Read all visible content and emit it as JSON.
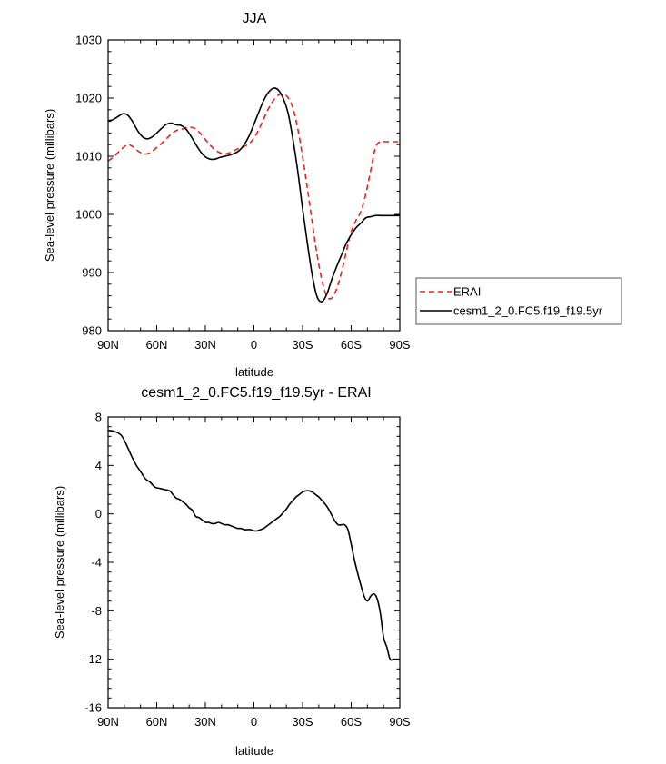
{
  "chart_data": [
    {
      "type": "line",
      "title": "JJA",
      "xlabel": "latitude",
      "ylabel": "Sea-level pressure (millibars)",
      "xlim": [
        90,
        -90
      ],
      "ylim": [
        980,
        1030
      ],
      "x_ticks": [
        {
          "value": 90,
          "label": "90N"
        },
        {
          "value": 60,
          "label": "60N"
        },
        {
          "value": 30,
          "label": "30N"
        },
        {
          "value": 0,
          "label": "0"
        },
        {
          "value": -30,
          "label": "30S"
        },
        {
          "value": -60,
          "label": "60S"
        },
        {
          "value": -90,
          "label": "90S"
        }
      ],
      "y_ticks": [
        {
          "value": 980,
          "label": "980"
        },
        {
          "value": 990,
          "label": "990"
        },
        {
          "value": 1000,
          "label": "1000"
        },
        {
          "value": 1010,
          "label": "1010"
        },
        {
          "value": 1020,
          "label": "1020"
        },
        {
          "value": 1030,
          "label": "1030"
        }
      ],
      "grid": false,
      "legend_position": "right-outside",
      "series": [
        {
          "name": "ERAI",
          "color": "#e8231d",
          "dash": "dashed",
          "x": [
            90,
            87,
            84,
            81,
            78,
            75,
            72,
            69,
            66,
            63,
            60,
            57,
            54,
            51,
            48,
            45,
            42,
            39,
            36,
            33,
            30,
            27,
            24,
            21,
            18,
            15,
            12,
            9,
            6,
            3,
            0,
            -3,
            -6,
            -9,
            -12,
            -15,
            -18,
            -21,
            -24,
            -27,
            -30,
            -33,
            -36,
            -39,
            -42,
            -45,
            -48,
            -51,
            -54,
            -57,
            -60,
            -63,
            -66,
            -69,
            -72,
            -75,
            -78,
            -81,
            -84,
            -87,
            -90
          ],
          "y": [
            1009.2,
            1009.8,
            1010.6,
            1011.4,
            1012.0,
            1011.7,
            1011.0,
            1010.5,
            1010.4,
            1010.8,
            1011.5,
            1012.2,
            1013.0,
            1013.8,
            1014.4,
            1014.6,
            1014.9,
            1015.0,
            1014.7,
            1013.9,
            1012.9,
            1011.9,
            1011.1,
            1010.6,
            1010.4,
            1010.6,
            1011.0,
            1011.4,
            1011.7,
            1012.2,
            1013.1,
            1014.6,
            1016.4,
            1018.2,
            1019.6,
            1020.5,
            1020.7,
            1020.1,
            1018.3,
            1014.8,
            1010.0,
            1004.4,
            998.5,
            993.0,
            988.6,
            985.9,
            985.6,
            987.2,
            990.0,
            993.6,
            997.0,
            999.0,
            1000.5,
            1003.5,
            1007.5,
            1011.5,
            1012.5,
            1012.5,
            1012.5,
            1012.5,
            1012.5
          ]
        },
        {
          "name": "cesm1_2_0.FC5.f19_f19.5yr",
          "color": "#000000",
          "dash": "solid",
          "x": [
            90,
            87,
            84,
            81,
            78,
            75,
            72,
            69,
            66,
            63,
            60,
            57,
            54,
            51,
            48,
            45,
            42,
            39,
            36,
            33,
            30,
            27,
            24,
            21,
            18,
            15,
            12,
            9,
            6,
            3,
            0,
            -3,
            -6,
            -9,
            -12,
            -15,
            -18,
            -21,
            -24,
            -27,
            -30,
            -33,
            -36,
            -39,
            -42,
            -45,
            -48,
            -51,
            -54,
            -57,
            -60,
            -63,
            -66,
            -69,
            -72,
            -75,
            -78,
            -81,
            -84,
            -87,
            -90
          ],
          "y": [
            1016.1,
            1016.3,
            1016.8,
            1017.3,
            1017.1,
            1016.0,
            1014.5,
            1013.4,
            1013.0,
            1013.3,
            1014.0,
            1014.8,
            1015.5,
            1015.7,
            1015.4,
            1015.3,
            1014.7,
            1013.5,
            1012.1,
            1010.8,
            1009.9,
            1009.5,
            1009.5,
            1009.8,
            1010.0,
            1010.2,
            1010.5,
            1011.0,
            1012.0,
            1013.5,
            1015.5,
            1017.6,
            1019.6,
            1021.0,
            1021.7,
            1021.4,
            1020.0,
            1017.5,
            1013.0,
            1007.5,
            1001.0,
            995.0,
            989.5,
            985.8,
            985.0,
            986.3,
            988.8,
            991.0,
            993.0,
            995.0,
            996.5,
            997.7,
            998.5,
            999.4,
            999.6,
            999.8,
            999.8,
            999.8,
            999.8,
            999.8,
            999.8
          ]
        }
      ]
    },
    {
      "type": "line",
      "title": "cesm1_2_0.FC5.f19_f19.5yr - ERAI",
      "xlabel": "latitude",
      "ylabel": "Sea-level pressure (millibars)",
      "xlim": [
        90,
        -90
      ],
      "ylim": [
        -16,
        8
      ],
      "x_ticks": [
        {
          "value": 90,
          "label": "90N"
        },
        {
          "value": 60,
          "label": "60N"
        },
        {
          "value": 30,
          "label": "30N"
        },
        {
          "value": 0,
          "label": "0"
        },
        {
          "value": -30,
          "label": "30S"
        },
        {
          "value": -60,
          "label": "60S"
        },
        {
          "value": -90,
          "label": "90S"
        }
      ],
      "y_ticks": [
        {
          "value": 8,
          "label": "8"
        },
        {
          "value": 4,
          "label": "4"
        },
        {
          "value": 0,
          "label": "0"
        },
        {
          "value": -4,
          "label": "-4"
        },
        {
          "value": -8,
          "label": "-8"
        },
        {
          "value": -12,
          "label": "-12"
        },
        {
          "value": -16,
          "label": "-16"
        }
      ],
      "grid": false,
      "series": [
        {
          "color": "#000000",
          "dash": "solid",
          "x": [
            90,
            86,
            82,
            79,
            76,
            73,
            70,
            67,
            64,
            61,
            58,
            55,
            52,
            50,
            48,
            46,
            44,
            42,
            40,
            38,
            36,
            34,
            32,
            30,
            28,
            26,
            24,
            22,
            20,
            18,
            16,
            14,
            12,
            10,
            8,
            6,
            4,
            2,
            0,
            -2,
            -4,
            -6,
            -8,
            -10,
            -12,
            -14,
            -16,
            -18,
            -20,
            -22,
            -24,
            -26,
            -28,
            -30,
            -32,
            -34,
            -36,
            -38,
            -40,
            -42,
            -44,
            -46,
            -48,
            -50,
            -52,
            -54,
            -56,
            -58,
            -60,
            -62,
            -64,
            -66,
            -68,
            -70,
            -72,
            -74,
            -76,
            -78,
            -80,
            -82,
            -84,
            -86,
            -88,
            -90
          ],
          "y": [
            6.9,
            6.8,
            6.5,
            5.8,
            4.9,
            4.1,
            3.5,
            2.9,
            2.6,
            2.2,
            2.1,
            2.0,
            1.9,
            1.6,
            1.3,
            1.2,
            1.0,
            0.8,
            0.5,
            0.3,
            -0.2,
            -0.3,
            -0.5,
            -0.7,
            -0.7,
            -0.8,
            -0.8,
            -0.7,
            -0.8,
            -0.9,
            -0.9,
            -1.0,
            -1.1,
            -1.2,
            -1.2,
            -1.3,
            -1.3,
            -1.3,
            -1.4,
            -1.4,
            -1.3,
            -1.2,
            -1.0,
            -0.8,
            -0.6,
            -0.4,
            -0.2,
            0.1,
            0.4,
            0.8,
            1.1,
            1.4,
            1.6,
            1.8,
            1.9,
            1.9,
            1.8,
            1.6,
            1.4,
            1.1,
            0.8,
            0.4,
            -0.1,
            -0.6,
            -0.9,
            -0.9,
            -0.9,
            -1.3,
            -2.5,
            -3.8,
            -4.9,
            -5.9,
            -6.8,
            -7.2,
            -6.8,
            -6.6,
            -7.0,
            -8.2,
            -10.2,
            -11.0,
            -12.0,
            -12.0,
            -12.0,
            -12.0
          ]
        }
      ]
    }
  ]
}
